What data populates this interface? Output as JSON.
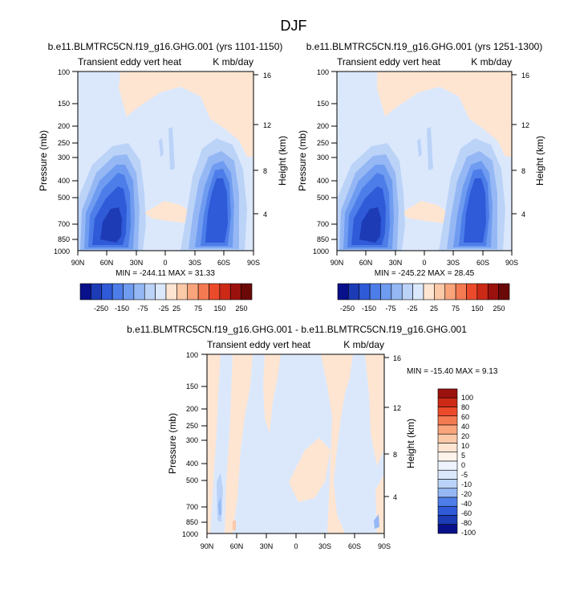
{
  "figure_title": "DJF",
  "chart_data": [
    {
      "type": "heatmap",
      "title": "b.e11.BLMTRC5CN.f19_g16.GHG.001 (yrs 1101-1150)",
      "left_subtitle": "Transient eddy vert heat",
      "right_subtitle": "K mb/day",
      "ylabel": "Pressure (mb)",
      "ylabel_right": "Height (km)",
      "x_ticks": [
        "90N",
        "60N",
        "30N",
        "0",
        "30S",
        "60S",
        "90S"
      ],
      "y_ticks": [
        "100",
        "150",
        "200",
        "250",
        "300",
        "400",
        "500",
        "700",
        "850",
        "1000"
      ],
      "y_right_ticks": [
        "16",
        "12",
        "8",
        "4"
      ],
      "stats": "MIN = -244.11   MAX =  31.33",
      "colorbar": {
        "orientation": "horizontal",
        "tick_labels": [
          "-250",
          "-150",
          "-75",
          "-25",
          "25",
          "75",
          "150",
          "250"
        ],
        "colors": [
          "#08108a",
          "#1c3bb5",
          "#2f5ad8",
          "#4d7de8",
          "#6f9cf0",
          "#95b8f5",
          "#bcd3f8",
          "#dbe8fc",
          "#fde5d2",
          "#fbc9a8",
          "#f9a47b",
          "#f47a52",
          "#ec4b2b",
          "#cc2a17",
          "#9b110d",
          "#6b0808"
        ]
      }
    },
    {
      "type": "heatmap",
      "title": "b.e11.BLMTRC5CN.f19_g16.GHG.001 (yrs 1251-1300)",
      "left_subtitle": "Transient eddy vert heat",
      "right_subtitle": "K mb/day",
      "ylabel": "Pressure (mb)",
      "ylabel_right": "Height (km)",
      "x_ticks": [
        "90N",
        "60N",
        "30N",
        "0",
        "30S",
        "60S",
        "90S"
      ],
      "y_ticks": [
        "100",
        "150",
        "200",
        "250",
        "300",
        "400",
        "500",
        "700",
        "850",
        "1000"
      ],
      "y_right_ticks": [
        "16",
        "12",
        "8",
        "4"
      ],
      "stats": "MIN = -245.22   MAX =  28.45",
      "colorbar": {
        "orientation": "horizontal",
        "tick_labels": [
          "-250",
          "-150",
          "-75",
          "-25",
          "25",
          "75",
          "150",
          "250"
        ],
        "colors": [
          "#08108a",
          "#1c3bb5",
          "#2f5ad8",
          "#4d7de8",
          "#6f9cf0",
          "#95b8f5",
          "#bcd3f8",
          "#dbe8fc",
          "#fde5d2",
          "#fbc9a8",
          "#f9a47b",
          "#f47a52",
          "#ec4b2b",
          "#cc2a17",
          "#9b110d",
          "#6b0808"
        ]
      }
    },
    {
      "type": "heatmap",
      "title": "b.e11.BLMTRC5CN.f19_g16.GHG.001 - b.e11.BLMTRC5CN.f19_g16.GHG.001",
      "left_subtitle": "Transient eddy vert heat",
      "right_subtitle": "K mb/day",
      "ylabel": "Pressure (mb)",
      "ylabel_right": "Height (km)",
      "x_ticks": [
        "90N",
        "60N",
        "30N",
        "0",
        "30S",
        "60S",
        "90S"
      ],
      "y_ticks": [
        "100",
        "150",
        "200",
        "250",
        "300",
        "400",
        "500",
        "700",
        "850",
        "1000"
      ],
      "y_right_ticks": [
        "16",
        "12",
        "8",
        "4"
      ],
      "stats": "MIN = -15.40   MAX =   9.13",
      "colorbar": {
        "orientation": "vertical",
        "tick_labels": [
          "100",
          "80",
          "60",
          "40",
          "20",
          "10",
          "5",
          "0",
          "-5",
          "-10",
          "-20",
          "-40",
          "-60",
          "-80",
          "-100"
        ],
        "colors": [
          "#9b110d",
          "#cc2a17",
          "#ec4b2b",
          "#f47a52",
          "#f9a47b",
          "#fbc9a8",
          "#fde5d2",
          "#fff4ec",
          "#eef4fd",
          "#dbe8fc",
          "#bcd3f8",
          "#95b8f5",
          "#4d7de8",
          "#2f5ad8",
          "#1c3bb5",
          "#08108a"
        ]
      }
    }
  ]
}
